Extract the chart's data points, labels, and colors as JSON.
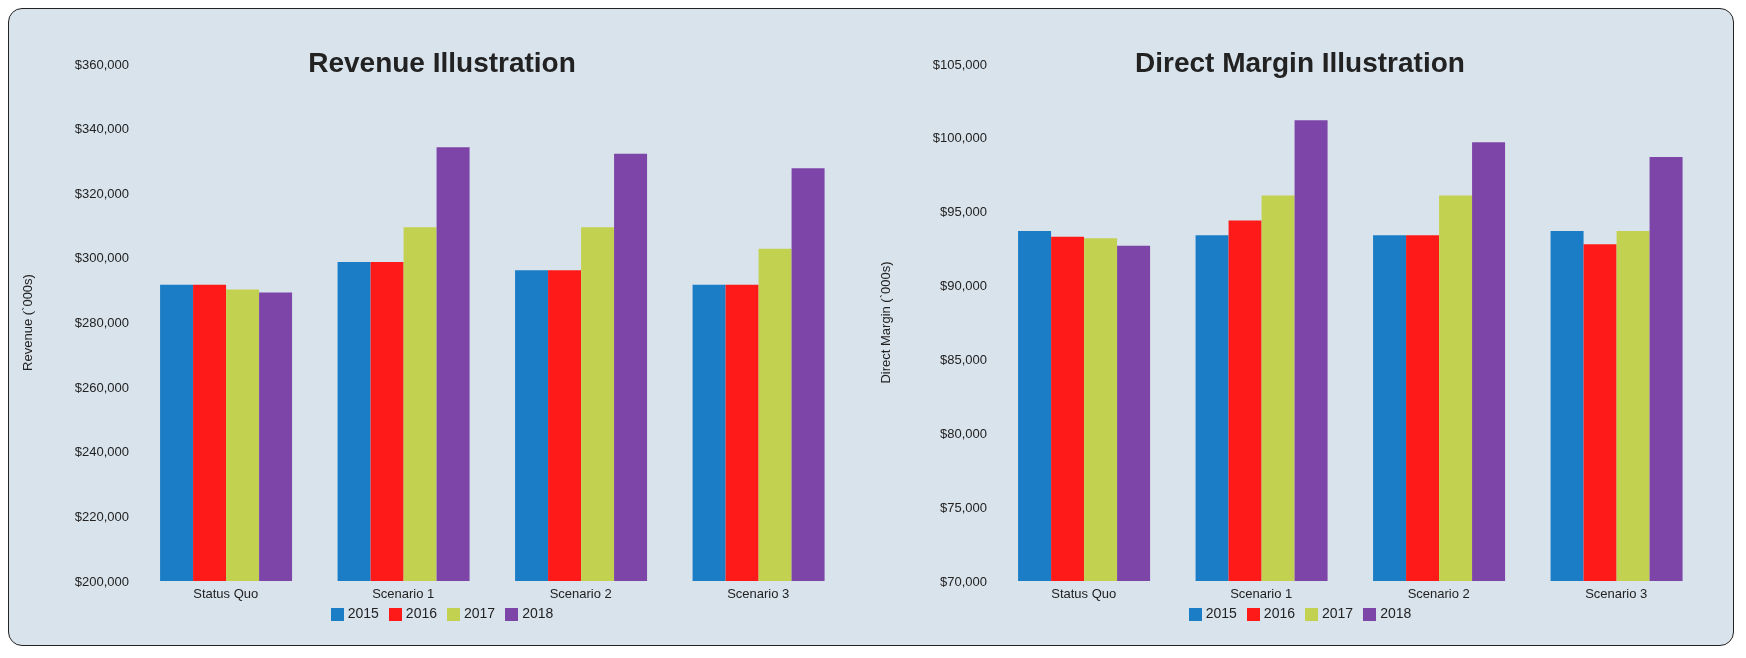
{
  "chart_data": [
    {
      "type": "bar",
      "title": "Revenue Illustration",
      "ylabel": "Revenue (`000s)",
      "categories": [
        "Status Quo",
        "Scenario 1",
        "Scenario 2",
        "Scenario 3"
      ],
      "series": [
        {
          "name": "2015",
          "color": "#1a7dc6",
          "values": [
            291700,
            298700,
            296200,
            291700
          ]
        },
        {
          "name": "2016",
          "color": "#ff1a1a",
          "values": [
            291700,
            298700,
            296200,
            291700
          ]
        },
        {
          "name": "2017",
          "color": "#c3d150",
          "values": [
            290200,
            309500,
            309500,
            302800
          ]
        },
        {
          "name": "2018",
          "color": "#7d45a8",
          "values": [
            289300,
            334200,
            332200,
            327700
          ]
        }
      ],
      "ylim": [
        200000,
        360000
      ],
      "yticks": [
        {
          "value": 200000,
          "label": "$200,000"
        },
        {
          "value": 220000,
          "label": "$220,000"
        },
        {
          "value": 240000,
          "label": "$240,000"
        },
        {
          "value": 260000,
          "label": "$260,000"
        },
        {
          "value": 280000,
          "label": "$280,000"
        },
        {
          "value": 300000,
          "label": "$300,000"
        },
        {
          "value": 320000,
          "label": "$320,000"
        },
        {
          "value": 340000,
          "label": "$340,000"
        },
        {
          "value": 360000,
          "label": "$360,000"
        }
      ],
      "grid": false,
      "legend": "bottom"
    },
    {
      "type": "bar",
      "title": "Direct Margin Illustration",
      "ylabel": "Direct Margin (`000s)",
      "categories": [
        "Status Quo",
        "Scenario 1",
        "Scenario 2",
        "Scenario 3"
      ],
      "series": [
        {
          "name": "2015",
          "color": "#1a7dc6",
          "values": [
            93700,
            93400,
            93400,
            93700
          ]
        },
        {
          "name": "2016",
          "color": "#ff1a1a",
          "values": [
            93300,
            94400,
            93400,
            92800
          ]
        },
        {
          "name": "2017",
          "color": "#c3d150",
          "values": [
            93200,
            96100,
            96100,
            93700
          ]
        },
        {
          "name": "2018",
          "color": "#7d45a8",
          "values": [
            92700,
            101200,
            99700,
            98700
          ]
        }
      ],
      "ylim": [
        70000,
        105000
      ],
      "yticks": [
        {
          "value": 70000,
          "label": "$70,000"
        },
        {
          "value": 75000,
          "label": "$75,000"
        },
        {
          "value": 80000,
          "label": "$80,000"
        },
        {
          "value": 85000,
          "label": "$85,000"
        },
        {
          "value": 90000,
          "label": "$90,000"
        },
        {
          "value": 95000,
          "label": "$95,000"
        },
        {
          "value": 100000,
          "label": "$100,000"
        },
        {
          "value": 105000,
          "label": "$105,000"
        }
      ],
      "grid": false,
      "legend": "bottom"
    }
  ]
}
